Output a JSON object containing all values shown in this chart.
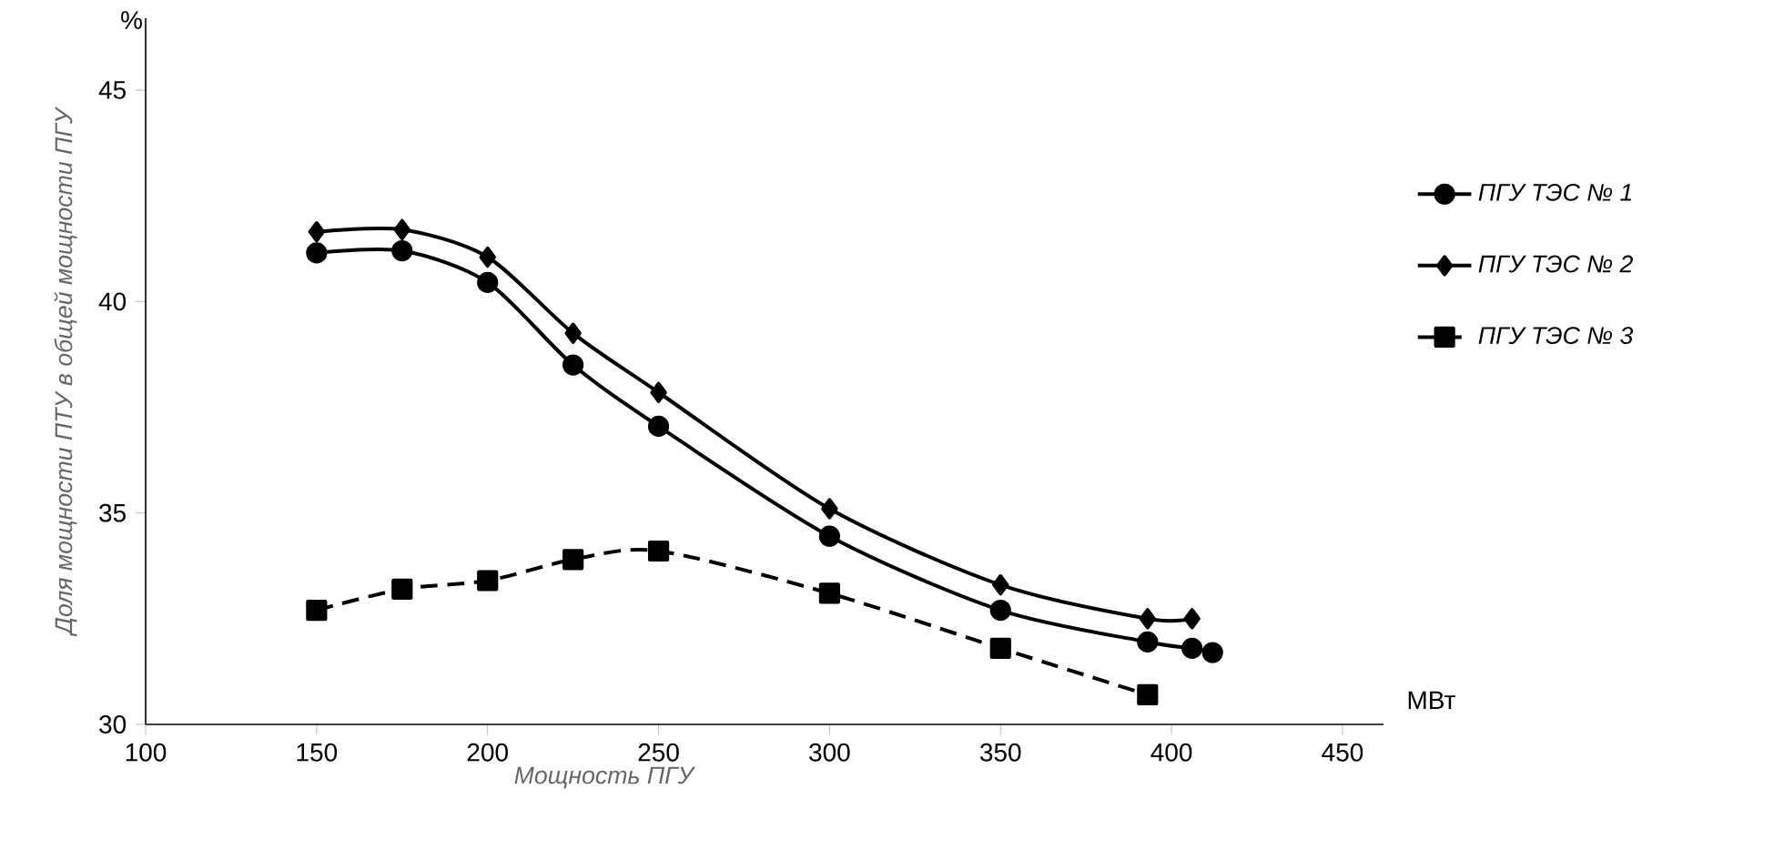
{
  "chart_data": {
    "type": "line",
    "xlabel": "Мощность ПГУ",
    "ylabel": "Доля мощности ПТУ в общей мощности ПГУ",
    "annotations": [
      "%",
      "МВт"
    ],
    "xlim": [
      100,
      462
    ],
    "ylim": [
      30,
      46.7
    ],
    "xticks": [
      100,
      150,
      200,
      250,
      300,
      350,
      400,
      450
    ],
    "yticks": [
      30,
      35,
      40,
      45
    ],
    "legend": "right",
    "series": [
      {
        "name": "ПГУ ТЭС № 1",
        "color": "#000000",
        "marker": "circle",
        "line_style": "solid",
        "x": [
          150,
          175,
          200,
          225,
          250,
          300,
          350,
          393,
          406,
          412
        ],
        "values": [
          41.15,
          41.2,
          40.45,
          38.5,
          37.05,
          34.45,
          32.7,
          31.95,
          31.8,
          31.7
        ]
      },
      {
        "name": "ПГУ ТЭС № 2",
        "color": "#000000",
        "marker": "diamond",
        "line_style": "solid",
        "x": [
          150,
          175,
          200,
          225,
          250,
          300,
          350,
          393,
          406
        ],
        "values": [
          41.65,
          41.7,
          41.05,
          39.25,
          37.85,
          35.1,
          33.3,
          32.5,
          32.5
        ]
      },
      {
        "name": "ПГУ ТЭС № 3",
        "color": "#000000",
        "marker": "square",
        "line_style": "dashed",
        "x": [
          150,
          175,
          200,
          225,
          250,
          300,
          350,
          393
        ],
        "values": [
          32.7,
          33.2,
          33.4,
          33.9,
          34.1,
          33.1,
          31.8,
          30.7
        ]
      }
    ]
  }
}
